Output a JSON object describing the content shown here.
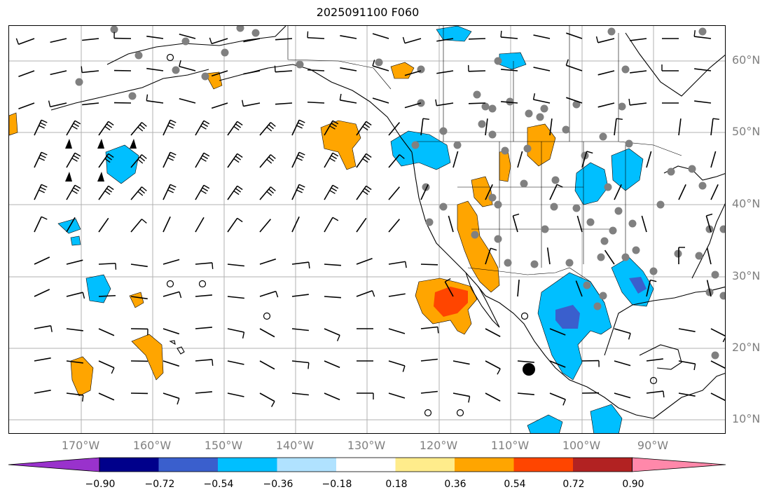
{
  "title": "2025091100 F060",
  "lat_labels": [
    "60°N",
    "50°N",
    "40°N",
    "30°N",
    "20°N",
    "10°N"
  ],
  "lon_labels": [
    "170°W",
    "160°W",
    "150°W",
    "140°W",
    "130°W",
    "120°W",
    "110°W",
    "100°W",
    "90°W"
  ],
  "colorbar": {
    "labels": [
      "−0.90",
      "−0.72",
      "−0.54",
      "−0.36",
      "−0.18",
      "0.18",
      "0.36",
      "0.54",
      "0.72",
      "0.90"
    ],
    "colors": [
      "#9932cc",
      "#00008b",
      "#3a5fcd",
      "#00bfff",
      "#b0e2ff",
      "#ffffff",
      "#ffec8b",
      "#ffa500",
      "#ff4500",
      "#b22222",
      "#ff88aa"
    ]
  },
  "map": {
    "lon_range": [
      -180,
      -80
    ],
    "lat_range": [
      8,
      65
    ],
    "features": {
      "coastline_color": "#000000",
      "grid_color": "#b0b0b0",
      "station_color": "#808080",
      "barb_color": "#000000"
    }
  }
}
